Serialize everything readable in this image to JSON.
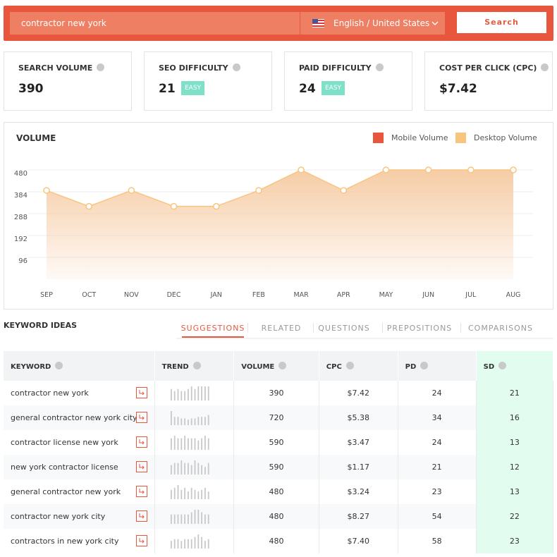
{
  "search": {
    "query": "contractor new york",
    "language": "English / United States",
    "button": "Search"
  },
  "metrics": [
    {
      "label": "SEARCH VOLUME",
      "value": "390"
    },
    {
      "label": "SEO DIFFICULTY",
      "value": "21",
      "badge": "EASY"
    },
    {
      "label": "PAID DIFFICULTY",
      "value": "24",
      "badge": "EASY"
    },
    {
      "label": "COST PER CLICK (CPC)",
      "value": "$7.42"
    }
  ],
  "chart_data": {
    "type": "area",
    "title": "VOLUME",
    "legend": [
      {
        "name": "Mobile Volume",
        "color": "#e8573d"
      },
      {
        "name": "Desktop Volume",
        "color": "#f8c57f"
      }
    ],
    "categories": [
      "SEP",
      "OCT",
      "NOV",
      "DEC",
      "JAN",
      "FEB",
      "MAR",
      "APR",
      "MAY",
      "JUN",
      "JUL",
      "AUG"
    ],
    "values": [
      390,
      320,
      390,
      320,
      320,
      390,
      480,
      390,
      480,
      480,
      480,
      480
    ],
    "color": "#f5c79c",
    "ylim": [
      0,
      480
    ],
    "yticks": [
      96,
      192,
      288,
      384,
      480
    ],
    "grid": true
  },
  "ideas": {
    "title": "KEYWORD IDEAS",
    "tabs": [
      "SUGGESTIONS",
      "RELATED",
      "QUESTIONS",
      "PREPOSITIONS",
      "COMPARISONS"
    ],
    "active_tab": 0
  },
  "table": {
    "columns": [
      "KEYWORD",
      "TREND",
      "VOLUME",
      "CPC",
      "PD",
      "SD"
    ],
    "rows": [
      {
        "keyword": "contractor new york",
        "trend": [
          390,
          320,
          390,
          320,
          320,
          390,
          480,
          390,
          480,
          480,
          480,
          480
        ],
        "volume": 390,
        "cpc": "$7.42",
        "pd": 24,
        "sd": 21
      },
      {
        "keyword": "general contractor new york city",
        "trend": [
          1000,
          590,
          590,
          480,
          480,
          390,
          480,
          480,
          590,
          590,
          590,
          720
        ],
        "volume": 720,
        "cpc": "$5.38",
        "pd": 34,
        "sd": 16
      },
      {
        "keyword": "contractor license new york",
        "trend": [
          590,
          720,
          590,
          590,
          720,
          590,
          590,
          590,
          480,
          590,
          720,
          590
        ],
        "volume": 590,
        "cpc": "$3.47",
        "pd": 24,
        "sd": 13
      },
      {
        "keyword": "new york contractor license",
        "trend": [
          480,
          590,
          590,
          720,
          590,
          590,
          480,
          720,
          590,
          480,
          390,
          590
        ],
        "volume": 590,
        "cpc": "$1.17",
        "pd": 21,
        "sd": 12
      },
      {
        "keyword": "general contractor new york",
        "trend": [
          390,
          480,
          590,
          390,
          480,
          320,
          480,
          390,
          320,
          390,
          480,
          320
        ],
        "volume": 480,
        "cpc": "$3.24",
        "pd": 23,
        "sd": 13
      },
      {
        "keyword": "contractor new york city",
        "trend": [
          480,
          480,
          480,
          480,
          480,
          480,
          590,
          720,
          720,
          590,
          480,
          480
        ],
        "volume": 480,
        "cpc": "$8.27",
        "pd": 54,
        "sd": 22
      },
      {
        "keyword": "contractors in new york city",
        "trend": [
          390,
          480,
          480,
          390,
          480,
          480,
          480,
          590,
          720,
          590,
          390,
          480
        ],
        "volume": 480,
        "cpc": "$7.40",
        "pd": 58,
        "sd": 23
      }
    ]
  }
}
